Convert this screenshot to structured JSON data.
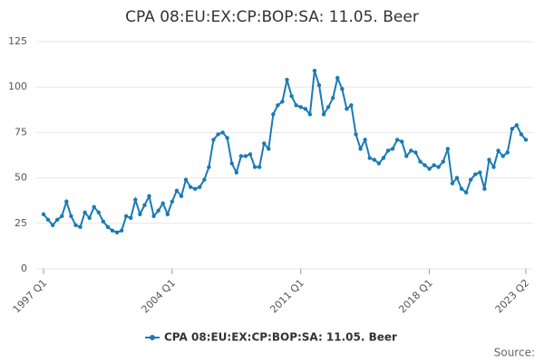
{
  "chart_data": {
    "type": "line",
    "title": "CPA 08:EU:EX:CP:BOP:SA: 11.05. Beer",
    "categories": [
      "1997 Q1",
      null,
      null,
      null,
      null,
      null,
      null,
      null,
      null,
      null,
      null,
      null,
      null,
      null,
      null,
      null,
      null,
      null,
      null,
      null,
      null,
      null,
      null,
      null,
      null,
      null,
      null,
      null,
      "2004 Q1",
      null,
      null,
      null,
      null,
      null,
      null,
      null,
      null,
      null,
      null,
      null,
      null,
      null,
      null,
      null,
      null,
      null,
      null,
      null,
      null,
      null,
      null,
      null,
      null,
      null,
      null,
      null,
      "2011 Q1",
      null,
      null,
      null,
      null,
      null,
      null,
      null,
      null,
      null,
      null,
      null,
      null,
      null,
      null,
      null,
      null,
      null,
      null,
      null,
      null,
      null,
      null,
      null,
      null,
      null,
      null,
      null,
      "2018 Q1",
      null,
      null,
      null,
      null,
      null,
      null,
      null,
      null,
      null,
      null,
      null,
      null,
      null,
      null,
      null,
      null,
      null,
      null,
      null,
      null,
      "2023 Q2"
    ],
    "series": [
      {
        "name": "CPA 08:EU:EX:CP:BOP:SA: 11.05. Beer",
        "color": "#1a7ab5",
        "values": [
          30,
          27,
          24,
          27,
          29,
          37,
          29,
          24,
          23,
          31,
          28,
          34,
          31,
          26,
          23,
          21,
          20,
          21,
          29,
          28,
          38,
          30,
          35,
          40,
          29,
          32,
          36,
          30,
          37,
          43,
          40,
          49,
          45,
          44,
          45,
          49,
          56,
          71,
          74,
          75,
          72,
          58,
          53,
          62,
          62,
          63,
          56,
          56,
          69,
          66,
          85,
          90,
          92,
          104,
          95,
          90,
          89,
          88,
          85,
          109,
          101,
          85,
          89,
          94,
          105,
          99,
          88,
          90,
          74,
          66,
          71,
          61,
          60,
          58,
          61,
          65,
          66,
          71,
          70,
          62,
          65,
          64,
          59,
          57,
          55,
          57,
          56,
          59,
          66,
          47,
          50,
          44,
          42,
          49,
          52,
          53,
          44,
          60,
          56,
          65,
          62,
          64,
          77,
          79,
          74,
          71
        ]
      }
    ],
    "ylim": [
      0,
      125
    ],
    "yticks": [
      0,
      25,
      50,
      75,
      100,
      125
    ],
    "grid": true,
    "legend": "bottom",
    "source": "Source:"
  }
}
